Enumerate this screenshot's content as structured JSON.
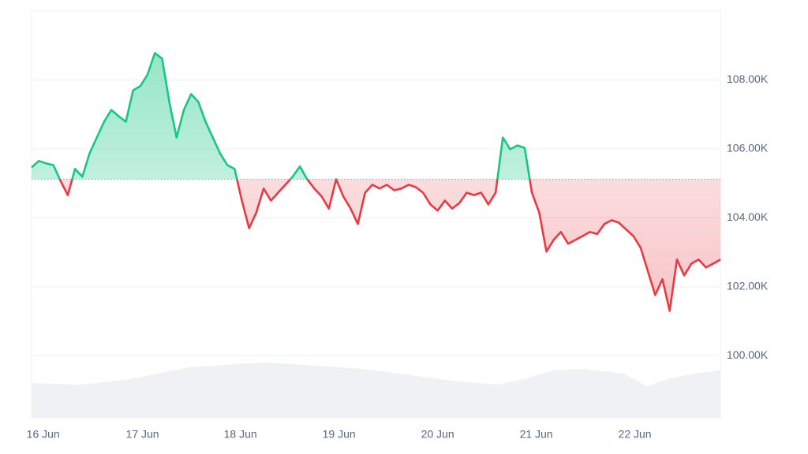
{
  "chart_data": {
    "type": "line",
    "values": [
      105.46,
      105.65,
      105.58,
      105.53,
      105.07,
      104.66,
      105.42,
      105.19,
      105.87,
      106.33,
      106.79,
      107.13,
      106.95,
      106.79,
      107.7,
      107.82,
      108.16,
      108.78,
      108.62,
      107.36,
      106.33,
      107.13,
      107.59,
      107.36,
      106.79,
      106.33,
      105.87,
      105.53,
      105.42,
      104.5,
      103.7,
      104.16,
      104.85,
      104.5,
      104.73,
      104.96,
      105.19,
      105.49,
      105.12,
      104.85,
      104.62,
      104.27,
      105.12,
      104.62,
      104.27,
      103.82,
      104.73,
      104.96,
      104.85,
      104.96,
      104.8,
      104.85,
      104.96,
      104.89,
      104.73,
      104.39,
      104.21,
      104.5,
      104.27,
      104.43,
      104.73,
      104.66,
      104.73,
      104.39,
      104.73,
      106.33,
      105.99,
      106.1,
      106.03,
      104.73,
      104.16,
      103.02,
      103.36,
      103.59,
      103.25,
      103.36,
      103.47,
      103.59,
      103.53,
      103.82,
      103.93,
      103.86,
      103.66,
      103.47,
      103.13,
      102.45,
      101.76,
      102.22,
      101.3,
      102.79,
      102.33,
      102.67,
      102.79,
      102.56,
      102.67,
      102.79
    ],
    "baseline": 105.12,
    "color_up": "#16c784",
    "color_down": "#ea3943",
    "xlim": [
      0,
      95
    ],
    "xticks": [
      {
        "value": 1.6,
        "label": "16 Jun"
      },
      {
        "value": 15.3,
        "label": "17 Jun"
      },
      {
        "value": 28.8,
        "label": "18 Jun"
      },
      {
        "value": 42.4,
        "label": "19 Jun"
      },
      {
        "value": 56.0,
        "label": "20 Jun"
      },
      {
        "value": 69.6,
        "label": "21 Jun"
      },
      {
        "value": 83.2,
        "label": "22 Jun"
      }
    ],
    "ylim": [
      98.2,
      110.0
    ],
    "yticks": [
      {
        "value": 100,
        "label": "100.00K"
      },
      {
        "value": 102,
        "label": "102.00K"
      },
      {
        "value": 104,
        "label": "104.00K"
      },
      {
        "value": 106,
        "label": "106.00K"
      },
      {
        "value": 108,
        "label": "108.00K"
      }
    ],
    "grid": true
  }
}
